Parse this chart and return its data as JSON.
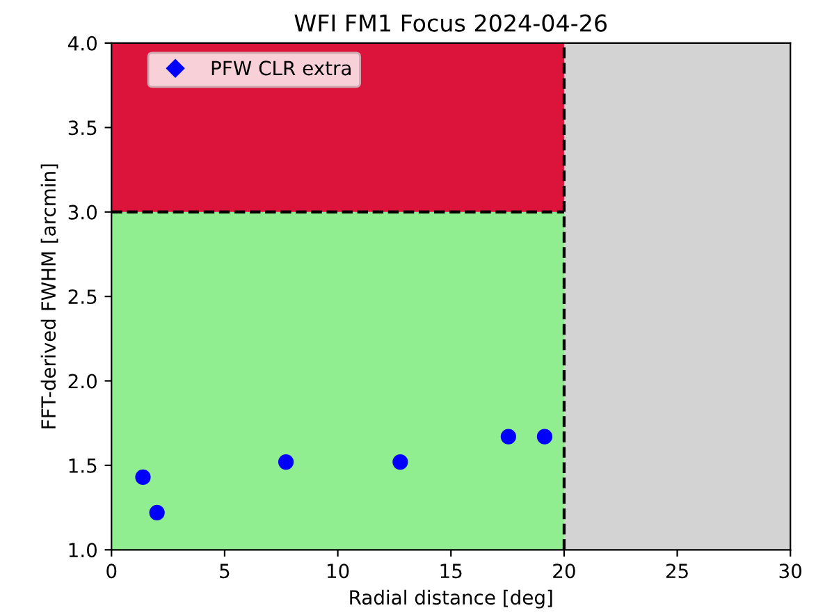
{
  "chart_data": {
    "type": "scatter",
    "title": "WFI FM1 Focus 2024-04-26",
    "xlabel": "Radial distance [deg]",
    "ylabel": "FFT-derived FWHM [arcmin]",
    "x": [
      1.39,
      2.01,
      7.71,
      12.76,
      17.54,
      19.14
    ],
    "series": [
      {
        "name": "PFW CLR extra",
        "color": "#0000ff",
        "values": [
          1.43,
          1.22,
          1.52,
          1.52,
          1.67,
          1.67
        ]
      }
    ],
    "xlim": [
      0,
      30
    ],
    "xticks": [
      0,
      5,
      10,
      15,
      20,
      25,
      30
    ],
    "ylim": [
      1.0,
      4.0
    ],
    "yticks": [
      {
        "value": 1.0,
        "label": "1.0"
      },
      {
        "value": 1.5,
        "label": "1.5"
      },
      {
        "value": 2.0,
        "label": "2.0"
      },
      {
        "value": 2.5,
        "label": "2.5"
      },
      {
        "value": 3.0,
        "label": "3.0"
      },
      {
        "value": 3.5,
        "label": "3.5"
      },
      {
        "value": 4.0,
        "label": "4.0"
      }
    ],
    "bands": [
      {
        "axis": "y",
        "from": 1.0,
        "to": 3.0,
        "color": "#90ee90"
      },
      {
        "axis": "y",
        "from": 3.0,
        "to": 4.0,
        "color": "#dc143c"
      },
      {
        "axis": "x",
        "from": 20,
        "to": 30,
        "color": "#d3d3d3"
      }
    ],
    "ref_lines": [
      {
        "axis": "y",
        "value": 3.0,
        "color": "#000000",
        "line_style": "dashed"
      },
      {
        "axis": "x",
        "value": 20,
        "color": "#000000",
        "line_style": "dashed"
      }
    ],
    "marker": "circle",
    "legend": "top left",
    "grid": false
  }
}
